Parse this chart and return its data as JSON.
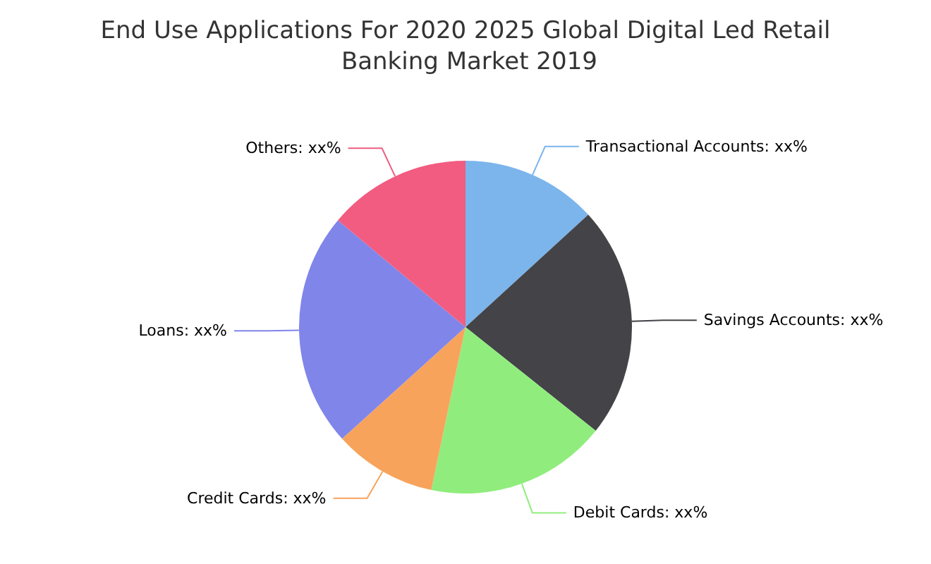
{
  "chart_data": {
    "type": "pie",
    "title": "End Use Applications For 2020 2025 Global Digital Led Retail Banking Market 2019",
    "categories": [
      "Transactional Accounts",
      "Savings Accounts",
      "Debit Cards",
      "Credit Cards",
      "Loans",
      "Others"
    ],
    "values": [
      13.2,
      22.5,
      17.6,
      10,
      22.8,
      13.9
    ],
    "value_labels": [
      "xx%",
      "xx%",
      "xx%",
      "xx%",
      "xx%",
      "xx%"
    ],
    "colors": [
      "#7cb5ec",
      "#434348",
      "#90ed7d",
      "#f7a35c",
      "#8085e9",
      "#f15c80"
    ],
    "legend": false
  }
}
